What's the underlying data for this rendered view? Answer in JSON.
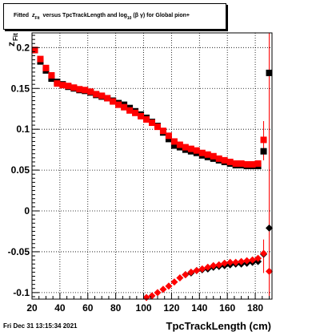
{
  "title": {
    "prefix": "Fitted",
    "z_sym": "z",
    "z_sub": "Fit",
    "middle": "versus TpcTrackLength and log",
    "log_sub": "10",
    "beta_gamma": "(β  γ)",
    "suffix": "for Global pion+"
  },
  "footer": {
    "timestamp": "Fri Dec 31 13:15:34 2021"
  },
  "chart_data": {
    "type": "scatter",
    "title": "Fitted z_Fit versus TpcTrackLength and log10(β γ) for Global pion+",
    "xlabel": "TpcTrackLength (cm)",
    "ylabel": "z_Fit",
    "xlim": [
      20,
      192
    ],
    "ylim": [
      -0.108,
      0.218
    ],
    "xticks": [
      20,
      40,
      60,
      80,
      100,
      120,
      140,
      160,
      180
    ],
    "yticks": [
      -0.1,
      -0.05,
      0,
      0.05,
      0.1,
      0.15,
      0.2
    ],
    "ytick_labels": [
      "-0.1",
      "-0.05",
      "0",
      "0.05",
      "0.1",
      "0.15",
      "0.2"
    ],
    "grid": true,
    "colors": {
      "black_series": "#000000",
      "red_series": "#ff0000"
    },
    "series": [
      {
        "marker": "square",
        "color": "#000000",
        "x": [
          22,
          26,
          30,
          34,
          38,
          42,
          46,
          50,
          54,
          58,
          62,
          66,
          70,
          74,
          78,
          82,
          86,
          90,
          94,
          98,
          102,
          106,
          110,
          114,
          118,
          122,
          126,
          130,
          134,
          138,
          142,
          146,
          150,
          154,
          158,
          162,
          166,
          170,
          174,
          178,
          182,
          186,
          190
        ],
        "y": [
          0.197,
          0.183,
          0.172,
          0.162,
          0.158,
          0.155,
          0.152,
          0.15,
          0.148,
          0.147,
          0.145,
          0.142,
          0.14,
          0.138,
          0.135,
          0.132,
          0.13,
          0.126,
          0.122,
          0.118,
          0.114,
          0.109,
          0.104,
          0.096,
          0.088,
          0.08,
          0.078,
          0.075,
          0.073,
          0.071,
          0.068,
          0.066,
          0.064,
          0.062,
          0.06,
          0.058,
          0.056,
          0.056,
          0.055,
          0.055,
          0.055,
          0.073,
          0.169
        ]
      },
      {
        "marker": "square",
        "color": "#ff0000",
        "x": [
          22,
          26,
          30,
          34,
          38,
          42,
          46,
          50,
          54,
          58,
          62,
          66,
          70,
          74,
          78,
          82,
          86,
          90,
          94,
          98,
          102,
          106,
          110,
          114,
          118,
          122,
          126,
          130,
          134,
          138,
          142,
          146,
          150,
          154,
          158,
          162,
          166,
          170,
          174,
          178,
          182,
          186
        ],
        "y": [
          0.197,
          0.186,
          0.175,
          0.166,
          0.156,
          0.154,
          0.153,
          0.151,
          0.149,
          0.148,
          0.146,
          0.143,
          0.141,
          0.138,
          0.134,
          0.13,
          0.127,
          0.123,
          0.12,
          0.116,
          0.112,
          0.108,
          0.103,
          0.098,
          0.092,
          0.085,
          0.081,
          0.078,
          0.076,
          0.074,
          0.071,
          0.069,
          0.067,
          0.064,
          0.062,
          0.06,
          0.058,
          0.058,
          0.057,
          0.057,
          0.058,
          0.087
        ]
      },
      {
        "marker": "diamond",
        "color": "#000000",
        "x": [
          130,
          134,
          138,
          142,
          146,
          150,
          154,
          158,
          162,
          166,
          170,
          174,
          178,
          182,
          186,
          190
        ],
        "y": [
          -0.078,
          -0.076,
          -0.073,
          -0.072,
          -0.071,
          -0.069,
          -0.068,
          -0.067,
          -0.066,
          -0.065,
          -0.065,
          -0.064,
          -0.063,
          -0.062,
          -0.053,
          -0.021
        ]
      },
      {
        "marker": "diamond",
        "color": "#ff0000",
        "x": [
          102,
          106,
          110,
          114,
          118,
          122,
          126,
          130,
          134,
          138,
          142,
          146,
          150,
          154,
          158,
          162,
          166,
          170,
          174,
          178,
          182,
          186,
          190
        ],
        "y": [
          -0.106,
          -0.104,
          -0.1,
          -0.096,
          -0.092,
          -0.087,
          -0.082,
          -0.078,
          -0.075,
          -0.073,
          -0.071,
          -0.069,
          -0.067,
          -0.066,
          -0.064,
          -0.063,
          -0.063,
          -0.062,
          -0.061,
          -0.06,
          -0.058,
          -0.052,
          -0.074
        ]
      }
    ]
  }
}
